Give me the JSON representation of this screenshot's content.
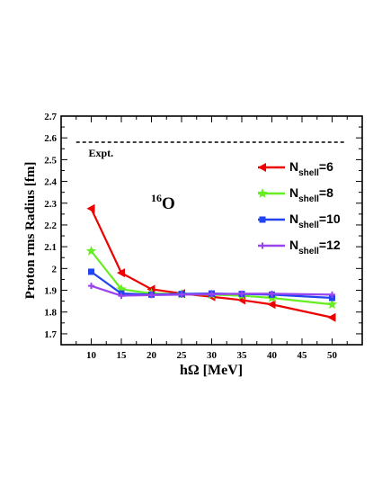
{
  "chart_data": {
    "type": "line",
    "xlabel": "hΩ [MeV]",
    "ylabel": "Proton rms Radius [fm]",
    "xlim": [
      5,
      55
    ],
    "ylim": [
      1.65,
      2.7
    ],
    "xticks": [
      10,
      15,
      20,
      25,
      30,
      35,
      40,
      45,
      50
    ],
    "yticks": [
      1.7,
      1.8,
      1.9,
      2.0,
      2.1,
      2.2,
      2.3,
      2.4,
      2.5,
      2.6,
      2.7
    ],
    "xtick_labels": [
      "10",
      "15",
      "20",
      "25",
      "30",
      "35",
      "40",
      "45",
      "50"
    ],
    "ytick_labels": [
      "1.7",
      "1.8",
      "1.9",
      "2",
      "2.1",
      "2.2",
      "2.3",
      "2.4",
      "2.5",
      "2.6",
      "2.7"
    ],
    "annotation": {
      "mass": "16",
      "element": "O"
    },
    "expt": {
      "label": "Expt.",
      "value": 2.58
    },
    "legend_position": "top-right",
    "x": [
      10,
      15,
      20,
      25,
      30,
      35,
      40,
      50
    ],
    "series": [
      {
        "name": "N",
        "sub": "shell",
        "suffix": "=6",
        "color": "#ee0000",
        "marker": "triangle-left",
        "values": [
          2.275,
          1.98,
          1.905,
          1.885,
          1.87,
          1.855,
          1.835,
          1.775
        ]
      },
      {
        "name": "N",
        "sub": "shell",
        "suffix": "=8",
        "color": "#66ee22",
        "marker": "star",
        "values": [
          2.08,
          1.905,
          1.885,
          1.882,
          1.88,
          1.875,
          1.865,
          1.835
        ]
      },
      {
        "name": "N",
        "sub": "shell",
        "suffix": "=10",
        "color": "#2244ee",
        "marker": "square",
        "values": [
          1.985,
          1.885,
          1.88,
          1.883,
          1.885,
          1.883,
          1.88,
          1.865
        ]
      },
      {
        "name": "N",
        "sub": "shell",
        "suffix": "=12",
        "color": "#9944ee",
        "marker": "plus",
        "values": [
          1.92,
          1.875,
          1.878,
          1.88,
          1.882,
          1.884,
          1.884,
          1.88
        ]
      }
    ]
  }
}
